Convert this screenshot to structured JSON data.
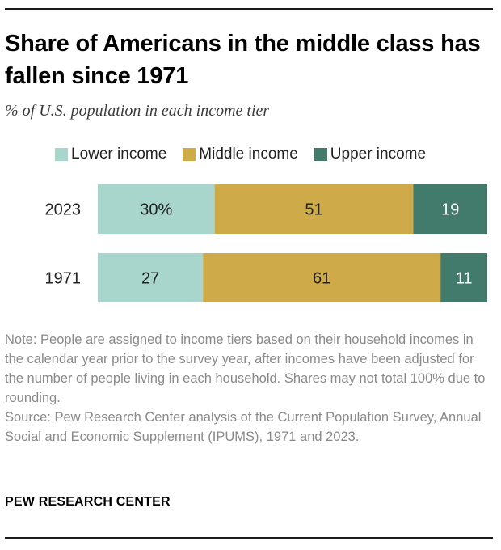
{
  "title": "Share of Americans in the middle class has fallen since 1971",
  "subtitle": "% of U.S. population in each income tier",
  "note": "Note: People are assigned to income tiers based on their household incomes in the calendar year prior to the survey year, after incomes have been adjusted for the number of people living in each household. Shares may not total 100% due to rounding.",
  "source": "Source: Pew Research Center analysis of the Current Population Survey, Annual Social and Economic Supplement (IPUMS), 1971 and 2023.",
  "brand": "PEW RESEARCH CENTER",
  "colors": {
    "lower": "#a9d6cc",
    "middle": "#ceab48",
    "upper": "#427a6b"
  },
  "chart_data": {
    "type": "bar",
    "orientation": "horizontal",
    "stacked": true,
    "categories": [
      "2023",
      "1971"
    ],
    "series": [
      {
        "name": "Lower income",
        "values": [
          30,
          27
        ],
        "labels": [
          "30%",
          "27"
        ]
      },
      {
        "name": "Middle income",
        "values": [
          51,
          61
        ],
        "labels": [
          "51",
          "61"
        ]
      },
      {
        "name": "Upper income",
        "values": [
          19,
          11
        ],
        "labels": [
          "19",
          "11"
        ]
      }
    ],
    "xlim": [
      0,
      100
    ],
    "legend": "top",
    "grid": false
  }
}
